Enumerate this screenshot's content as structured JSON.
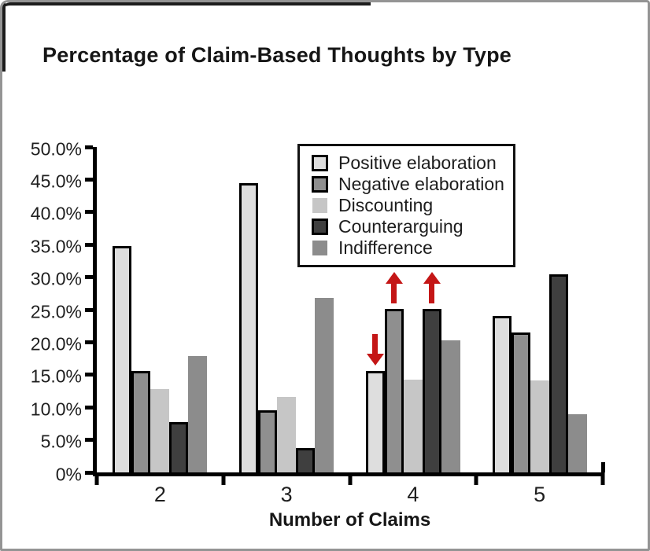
{
  "figure": {
    "background_color": "#ffffff",
    "frame_color": "#949494",
    "axis_color": "#000000",
    "text_color": "#1f1f1f",
    "arrow_color": "#c41616"
  },
  "chart_data": {
    "type": "bar",
    "title": "Percentage of Claim-Based Thoughts by Type",
    "xlabel": "Number of Claims",
    "ylabel": "",
    "categories": [
      "2",
      "3",
      "4",
      "5"
    ],
    "series": [
      {
        "name": "Positive elaboration",
        "color": "#dedede",
        "outlined": true,
        "values": [
          34.8,
          44.5,
          15.6,
          24.0
        ]
      },
      {
        "name": "Negative elaboration",
        "color": "#8f8f8f",
        "outlined": true,
        "values": [
          15.6,
          9.6,
          25.1,
          21.5
        ]
      },
      {
        "name": "Discounting",
        "color": "#c6c6c6",
        "outlined": false,
        "values": [
          12.8,
          11.6,
          14.3,
          14.1
        ]
      },
      {
        "name": "Counterarguing",
        "color": "#3f3f3f",
        "outlined": true,
        "values": [
          7.7,
          3.8,
          25.1,
          30.4
        ]
      },
      {
        "name": "Indifference",
        "color": "#8c8c8c",
        "outlined": false,
        "values": [
          17.9,
          26.8,
          20.3,
          8.9
        ]
      }
    ],
    "ylim": [
      0,
      50
    ],
    "ytick_step": 5,
    "ytick_labels": [
      "0%",
      "5.0%",
      "10.0%",
      "15.0%",
      "20.0%",
      "25.0%",
      "30.0%",
      "35.0%",
      "40.0%",
      "45.0%",
      "50.0%"
    ],
    "grid": false,
    "legend_position": "upper center inside plot",
    "arrow_color": "#c41616",
    "annotations": [
      {
        "type": "arrow",
        "direction": "down",
        "category": "4",
        "series": "Positive elaboration"
      },
      {
        "type": "arrow",
        "direction": "up",
        "category": "4",
        "series": "Negative elaboration"
      },
      {
        "type": "arrow",
        "direction": "up",
        "category": "4",
        "series": "Counterarguing"
      }
    ]
  }
}
